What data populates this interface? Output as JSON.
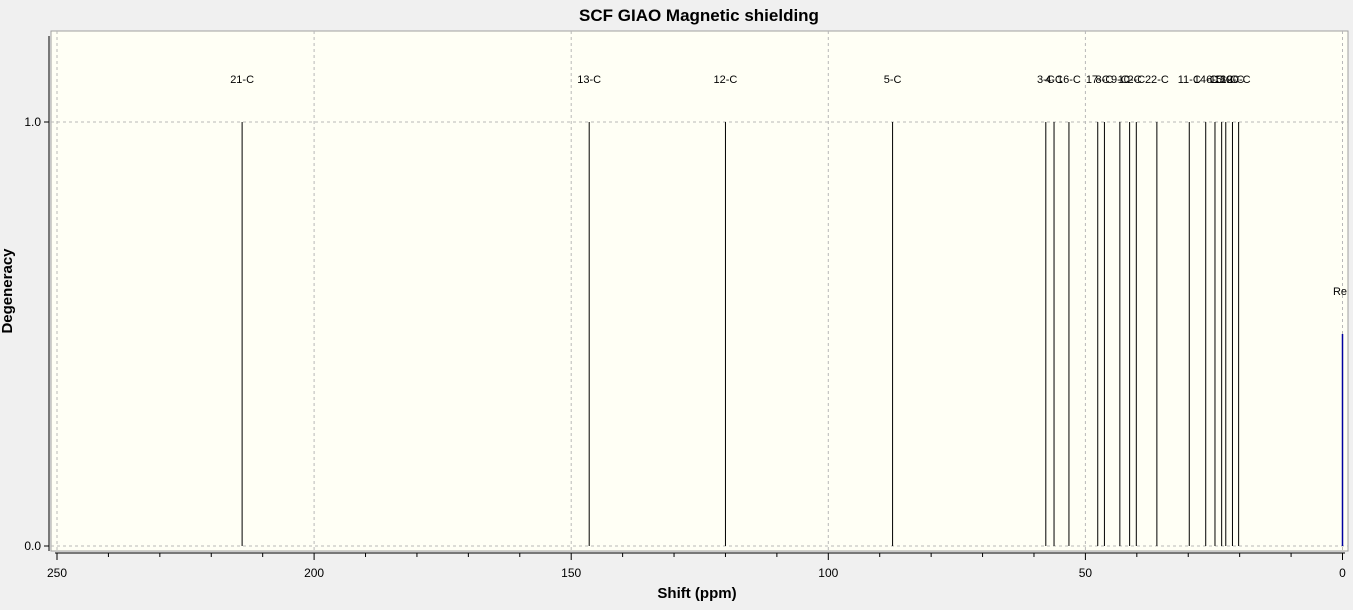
{
  "chart_data": {
    "type": "bar",
    "title": "SCF GIAO Magnetic shielding",
    "xlabel": "Shift (ppm)",
    "ylabel": "Degeneracy",
    "xlim": [
      250,
      0
    ],
    "ylim": [
      0,
      1.2
    ],
    "x_ticks": [
      250,
      200,
      150,
      100,
      50,
      0
    ],
    "x_tick_labels": [
      "250",
      "200",
      "150",
      "100",
      "50",
      "0"
    ],
    "y_ticks": [
      0,
      1
    ],
    "y_tick_labels": [
      "0.0",
      "1.0"
    ],
    "grid": true,
    "colors": {
      "plot_background": "#fffff5",
      "page_background": "#f0f0f0",
      "peak": "#000000",
      "reference": "#0000a0",
      "grid": "#b8b8b8"
    },
    "peaks": [
      {
        "label": "21-C",
        "x": 214.0,
        "y": 1.0
      },
      {
        "label": "13-C",
        "x": 146.5,
        "y": 1.0
      },
      {
        "label": "12-C",
        "x": 120.0,
        "y": 1.0
      },
      {
        "label": "5-C",
        "x": 87.5,
        "y": 1.0
      },
      {
        "label": "3-C",
        "x": 57.7,
        "y": 1.0
      },
      {
        "label": "4-C",
        "x": 56.1,
        "y": 1.0
      },
      {
        "label": "16-C",
        "x": 53.2,
        "y": 1.0
      },
      {
        "label": "17-C",
        "x": 47.6,
        "y": 1.0
      },
      {
        "label": "8-C",
        "x": 46.3,
        "y": 1.0
      },
      {
        "label": "9-C",
        "x": 43.3,
        "y": 1.0
      },
      {
        "label": "10-C",
        "x": 41.4,
        "y": 1.0
      },
      {
        "label": "2-C",
        "x": 40.1,
        "y": 1.0
      },
      {
        "label": "22-C",
        "x": 36.1,
        "y": 1.0
      },
      {
        "label": "11-C",
        "x": 29.8,
        "y": 1.0
      },
      {
        "label": "14-C",
        "x": 26.6,
        "y": 1.0
      },
      {
        "label": "6-C",
        "x": 24.8,
        "y": 1.0
      },
      {
        "label": "15-C",
        "x": 23.5,
        "y": 1.0
      },
      {
        "label": "18-C",
        "x": 22.7,
        "y": 1.0
      },
      {
        "label": "19-C",
        "x": 21.4,
        "y": 1.0
      },
      {
        "label": "20-C",
        "x": 20.2,
        "y": 1.0
      }
    ],
    "reference": {
      "label": "Re",
      "x": 0.0,
      "y": 0.5
    }
  }
}
